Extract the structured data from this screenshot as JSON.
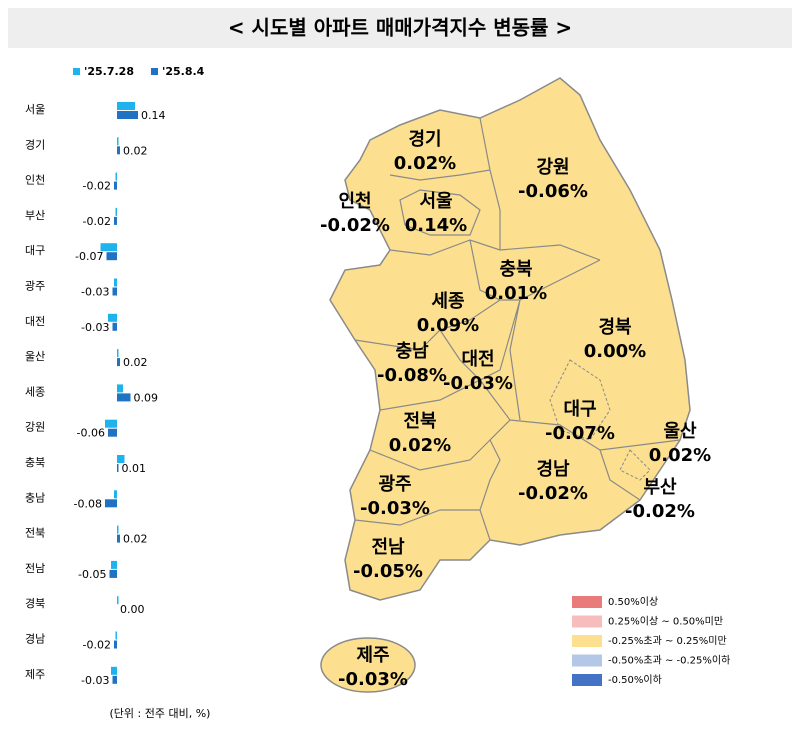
{
  "chart_data": {
    "type": "hbar",
    "title": "< 시도별 아파트 매매가격지수 변동률 >",
    "note": "(단위 : 전주 대비, %)",
    "categories": [
      "서울",
      "경기",
      "인천",
      "부산",
      "대구",
      "광주",
      "대전",
      "울산",
      "세종",
      "강원",
      "충북",
      "충남",
      "전북",
      "전남",
      "경북",
      "경남",
      "제주"
    ],
    "series": [
      {
        "name": "'25.7.28",
        "color": "#1fb3ee",
        "values": [
          0.12,
          0.01,
          -0.01,
          -0.01,
          -0.11,
          -0.02,
          -0.06,
          0.01,
          0.04,
          -0.08,
          0.05,
          -0.02,
          0.01,
          -0.04,
          0.01,
          -0.01,
          -0.04
        ]
      },
      {
        "name": "'25.8.4",
        "color": "#1f73c2",
        "values": [
          0.14,
          0.02,
          -0.02,
          -0.02,
          -0.07,
          -0.03,
          -0.03,
          0.02,
          0.09,
          -0.06,
          0.01,
          -0.08,
          0.02,
          -0.05,
          0,
          -0.02,
          -0.03
        ],
        "value_labels": [
          "0.14",
          "0.02",
          "-0.02",
          "-0.02",
          "-0.07",
          "-0.03",
          "-0.03",
          "0.02",
          "0.09",
          "-0.06",
          "0.01",
          "-0.08",
          "0.02",
          "-0.05",
          "0.00",
          "-0.02",
          "-0.03"
        ]
      }
    ],
    "xlim": [
      -0.15,
      0.15
    ]
  },
  "map": {
    "regions": [
      {
        "name": "경기",
        "label": "0.02%"
      },
      {
        "name": "강원",
        "label": "-0.06%"
      },
      {
        "name": "인천",
        "label": "-0.02%"
      },
      {
        "name": "서울",
        "label": "0.14%"
      },
      {
        "name": "충북",
        "label": "0.01%"
      },
      {
        "name": "세종",
        "label": "0.09%"
      },
      {
        "name": "경북",
        "label": "0.00%"
      },
      {
        "name": "충남",
        "label": "-0.08%"
      },
      {
        "name": "대전",
        "label": "-0.03%"
      },
      {
        "name": "전북",
        "label": "0.02%"
      },
      {
        "name": "대구",
        "label": "-0.07%"
      },
      {
        "name": "울산",
        "label": "0.02%"
      },
      {
        "name": "광주",
        "label": "-0.03%"
      },
      {
        "name": "경남",
        "label": "-0.02%"
      },
      {
        "name": "부산",
        "label": "-0.02%"
      },
      {
        "name": "전남",
        "label": "-0.05%"
      },
      {
        "name": "제주",
        "label": "-0.03%"
      }
    ],
    "legend": [
      {
        "label": "0.50%이상",
        "color": "#e97b7b"
      },
      {
        "label": "0.25%이상 ~ 0.50%미만",
        "color": "#f7bcbc"
      },
      {
        "label": "-0.25%초과 ~ 0.25%미만",
        "color": "#fde08f"
      },
      {
        "label": "-0.50%초과 ~ -0.25%이하",
        "color": "#b4c7e7"
      },
      {
        "label": "-0.50%이하",
        "color": "#4472c4"
      }
    ]
  }
}
